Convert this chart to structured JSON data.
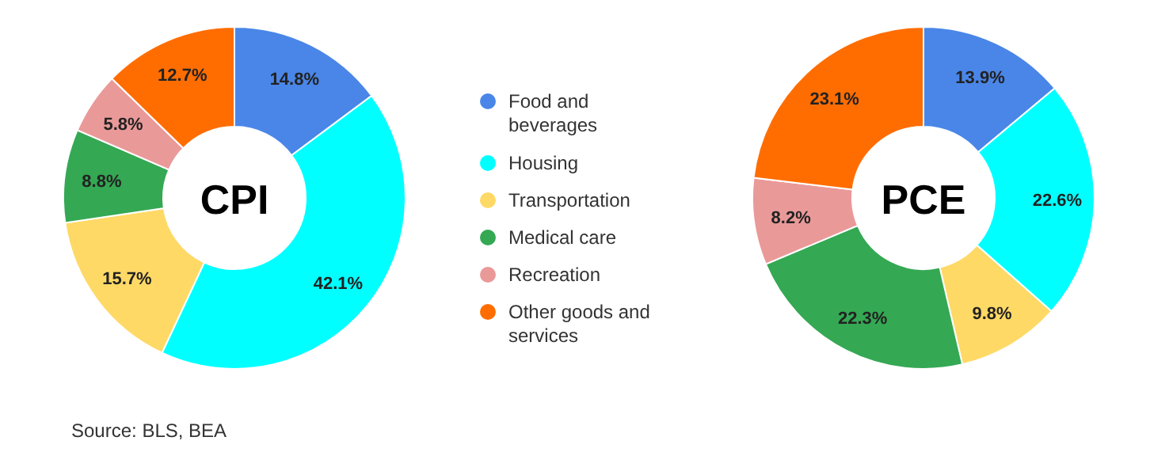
{
  "chart_data": [
    {
      "type": "donut",
      "title": "CPI",
      "categories": [
        "Food and beverages",
        "Housing",
        "Transportation",
        "Medical care",
        "Recreation",
        "Other goods and services"
      ],
      "values": [
        14.8,
        42.1,
        15.7,
        8.8,
        5.8,
        12.7
      ],
      "value_labels": [
        "14.8%",
        "42.1%",
        "15.7%",
        "8.8%",
        "5.8%",
        "12.7%"
      ],
      "colors": [
        "#4a86e8",
        "#00ffff",
        "#ffd966",
        "#34a853",
        "#ea9999",
        "#ff6d01"
      ],
      "legend": "right",
      "annotations": [
        "Source: BLS, BEA"
      ]
    },
    {
      "type": "donut",
      "title": "PCE",
      "categories": [
        null,
        null,
        null,
        null,
        null,
        null
      ],
      "values": [
        13.9,
        22.6,
        9.8,
        22.3,
        8.2,
        23.1
      ],
      "value_labels": [
        "13.9%",
        "22.6%",
        "9.8%",
        "22.3%",
        "8.2%",
        "23.1%"
      ],
      "colors": [
        "#4a86e8",
        "#00ffff",
        "#ffd966",
        "#34a853",
        "#ea9999",
        "#ff6d01"
      ]
    }
  ]
}
